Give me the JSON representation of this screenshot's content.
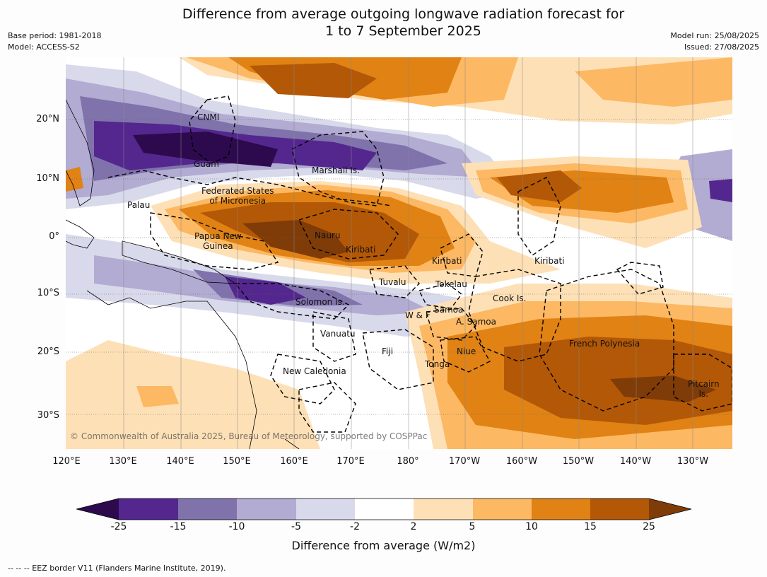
{
  "title": {
    "line1": "Difference from average outgoing longwave radiation forecast for",
    "line2": "1 to 7 September 2025"
  },
  "meta": {
    "base_period": "Base period: 1981-2018",
    "model": "Model: ACCESS-S2",
    "model_run": "Model run: 25/08/2025",
    "issued": "Issued: 27/08/2025"
  },
  "map": {
    "lat_labels": [
      "20°N",
      "10°N",
      "0°",
      "10°S",
      "20°S",
      "30°S"
    ],
    "lon_labels": [
      "120°E",
      "130°E",
      "140°E",
      "150°E",
      "160°E",
      "170°E",
      "180°",
      "170°W",
      "160°W",
      "150°W",
      "140°W",
      "130°W"
    ],
    "places": {
      "cnmi": "CNMI",
      "guam": "Guam",
      "marshall": "Marshall Is.",
      "fsm_1": "Federated States",
      "fsm_2": "of Micronesia",
      "palau": "Palau",
      "png_1": "Papua New",
      "png_2": "Guinea",
      "nauru": "Nauru",
      "kiribati_w": "Kiribati",
      "kiribati_c": "Kiribati",
      "kiribati_e": "Kiribati",
      "tuvalu": "Tuvalu",
      "tokelau": "Tokelau",
      "cook": "Cook Is.",
      "solomon": "Solomon Is.",
      "samoa": "Samoa",
      "wf": "W & F",
      "asamoa": "A. Samoa",
      "vanuatu": "Vanuatu",
      "fiji": "Fiji",
      "niue": "Niue",
      "french_polynesia": "French Polynesia",
      "tonga": "Tonga",
      "new_caledonia": "New Caledonia",
      "pitcairn_1": "Pitcairn",
      "pitcairn_2": "Is."
    },
    "copyright": "© Commonwealth of Australia 2025, Bureau of Meteorology, supported by COSPPac"
  },
  "colorbar": {
    "ticks": [
      "-25",
      "-15",
      "-10",
      "-5",
      "-2",
      "2",
      "5",
      "10",
      "15",
      "25"
    ],
    "colors": {
      "lt_m25": "#2d0a4e",
      "m25_m15": "#54278f",
      "m15_m10": "#8073ac",
      "m10_m5": "#b2abd2",
      "m5_m2": "#d8daeb",
      "m2_2": "#ffffff",
      "p2_5": "#fee0b6",
      "p5_10": "#fdb863",
      "p10_15": "#e08214",
      "p15_25": "#b35806",
      "gt_25": "#7f3b08"
    },
    "label": "Difference from average (W/m2)"
  },
  "footnote": "--  --  -- EEZ border V11 (Flanders Marine Institute, 2019)."
}
